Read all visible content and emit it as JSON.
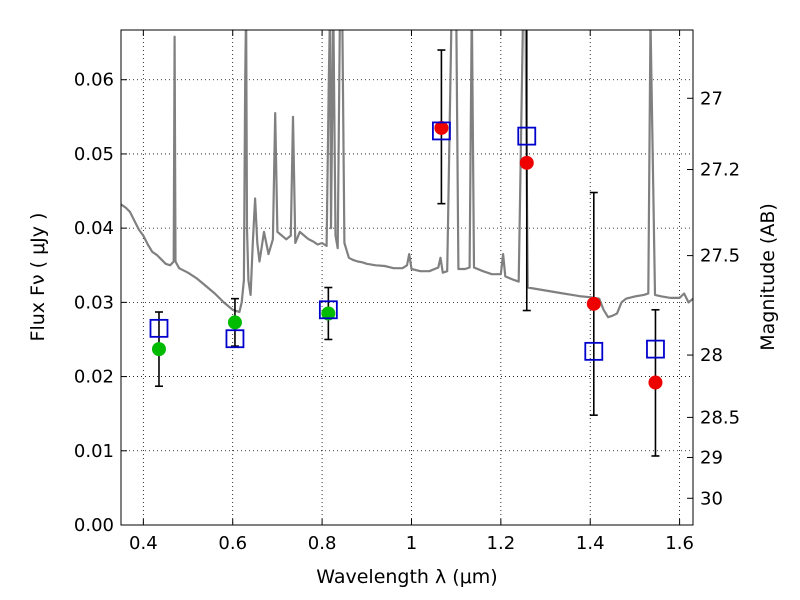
{
  "chart_data": {
    "type": "scatter",
    "xlabel": "Wavelength  λ (μm)",
    "ylabel_left": "Flux  Fν  ( μJy )",
    "ylabel_right": "Magnitude (AB)",
    "xlim": [
      0.35,
      1.63
    ],
    "ylim": [
      0.0,
      0.0667
    ],
    "grid": true,
    "x_ticks": [
      0.4,
      0.6,
      0.8,
      1.0,
      1.2,
      1.4,
      1.6
    ],
    "x_tick_labels": [
      "0.4",
      "0.6",
      "0.8",
      "1",
      "1.2",
      "1.4",
      "1.6"
    ],
    "y_ticks": [
      0.0,
      0.01,
      0.02,
      0.03,
      0.04,
      0.05,
      0.06
    ],
    "y_tick_labels": [
      "0.00",
      "0.01",
      "0.02",
      "0.03",
      "0.04",
      "0.05",
      "0.06"
    ],
    "right_ticks": [
      {
        "label": "27",
        "flux": 0.0575
      },
      {
        "label": "27.2",
        "flux": 0.0479
      },
      {
        "label": "27.5",
        "flux": 0.0363
      },
      {
        "label": "28",
        "flux": 0.0229
      },
      {
        "label": "28.5",
        "flux": 0.0145
      },
      {
        "label": "29",
        "flux": 0.0091
      },
      {
        "label": "30",
        "flux": 0.0036
      }
    ],
    "colors": {
      "model": "#808080",
      "model_points": "#0000cc",
      "green_points": "#00bb00",
      "red_points": "#ee0000",
      "errorbar": "#000000"
    },
    "series": [
      {
        "kind": "model_spectrum",
        "points": [
          [
            0.35,
            0.0432
          ],
          [
            0.36,
            0.0428
          ],
          [
            0.37,
            0.0422
          ],
          [
            0.38,
            0.041
          ],
          [
            0.39,
            0.0398
          ],
          [
            0.4,
            0.039
          ],
          [
            0.41,
            0.0378
          ],
          [
            0.42,
            0.0368
          ],
          [
            0.43,
            0.0364
          ],
          [
            0.44,
            0.0358
          ],
          [
            0.45,
            0.0352
          ],
          [
            0.46,
            0.035
          ],
          [
            0.468,
            0.0355
          ],
          [
            0.47,
            0.0658
          ],
          [
            0.472,
            0.0355
          ],
          [
            0.48,
            0.0346
          ],
          [
            0.5,
            0.034
          ],
          [
            0.52,
            0.0332
          ],
          [
            0.54,
            0.0322
          ],
          [
            0.56,
            0.0312
          ],
          [
            0.58,
            0.03
          ],
          [
            0.6,
            0.029
          ],
          [
            0.61,
            0.0288
          ],
          [
            0.615,
            0.0287
          ],
          [
            0.62,
            0.03
          ],
          [
            0.625,
            0.033
          ],
          [
            0.628,
            0.06
          ],
          [
            0.63,
            0.07
          ],
          [
            0.632,
            0.04
          ],
          [
            0.635,
            0.033
          ],
          [
            0.64,
            0.031
          ],
          [
            0.645,
            0.038
          ],
          [
            0.65,
            0.044
          ],
          [
            0.655,
            0.038
          ],
          [
            0.66,
            0.0355
          ],
          [
            0.67,
            0.0395
          ],
          [
            0.68,
            0.0365
          ],
          [
            0.69,
            0.0385
          ],
          [
            0.695,
            0.0555
          ],
          [
            0.7,
            0.0395
          ],
          [
            0.71,
            0.039
          ],
          [
            0.72,
            0.0385
          ],
          [
            0.73,
            0.039
          ],
          [
            0.735,
            0.055
          ],
          [
            0.74,
            0.038
          ],
          [
            0.75,
            0.0395
          ],
          [
            0.76,
            0.039
          ],
          [
            0.77,
            0.0385
          ],
          [
            0.78,
            0.0382
          ],
          [
            0.79,
            0.0378
          ],
          [
            0.8,
            0.038
          ],
          [
            0.81,
            0.0376
          ],
          [
            0.815,
            0.06
          ],
          [
            0.818,
            0.07
          ],
          [
            0.82,
            0.04
          ],
          [
            0.825,
            0.07
          ],
          [
            0.83,
            0.039
          ],
          [
            0.835,
            0.0373
          ],
          [
            0.84,
            0.07
          ],
          [
            0.845,
            0.07
          ],
          [
            0.85,
            0.038
          ],
          [
            0.86,
            0.036
          ],
          [
            0.87,
            0.0357
          ],
          [
            0.88,
            0.0355
          ],
          [
            0.89,
            0.0354
          ],
          [
            0.9,
            0.0352
          ],
          [
            0.92,
            0.035
          ],
          [
            0.94,
            0.0349
          ],
          [
            0.96,
            0.0346
          ],
          [
            0.98,
            0.0346
          ],
          [
            0.99,
            0.035
          ],
          [
            0.995,
            0.0365
          ],
          [
            1.0,
            0.0345
          ],
          [
            1.02,
            0.0342
          ],
          [
            1.04,
            0.0342
          ],
          [
            1.06,
            0.0347
          ],
          [
            1.065,
            0.036
          ],
          [
            1.07,
            0.034
          ],
          [
            1.08,
            0.0342
          ],
          [
            1.09,
            0.07
          ],
          [
            1.1,
            0.07
          ],
          [
            1.105,
            0.0345
          ],
          [
            1.12,
            0.0345
          ],
          [
            1.13,
            0.0347
          ],
          [
            1.135,
            0.07
          ],
          [
            1.14,
            0.0347
          ],
          [
            1.16,
            0.0342
          ],
          [
            1.18,
            0.0338
          ],
          [
            1.2,
            0.0338
          ],
          [
            1.205,
            0.0365
          ],
          [
            1.21,
            0.0335
          ],
          [
            1.23,
            0.033
          ],
          [
            1.24,
            0.0328
          ],
          [
            1.25,
            0.07
          ],
          [
            1.255,
            0.07
          ],
          [
            1.26,
            0.032
          ],
          [
            1.28,
            0.0318
          ],
          [
            1.3,
            0.0316
          ],
          [
            1.32,
            0.0314
          ],
          [
            1.34,
            0.0312
          ],
          [
            1.36,
            0.031
          ],
          [
            1.38,
            0.0308
          ],
          [
            1.4,
            0.0307
          ],
          [
            1.42,
            0.0305
          ],
          [
            1.43,
            0.029
          ],
          [
            1.44,
            0.028
          ],
          [
            1.45,
            0.0282
          ],
          [
            1.46,
            0.0285
          ],
          [
            1.47,
            0.03
          ],
          [
            1.48,
            0.0305
          ],
          [
            1.5,
            0.0308
          ],
          [
            1.52,
            0.031
          ],
          [
            1.53,
            0.0312
          ],
          [
            1.535,
            0.068
          ],
          [
            1.545,
            0.031
          ],
          [
            1.56,
            0.0308
          ],
          [
            1.58,
            0.0306
          ],
          [
            1.6,
            0.0306
          ],
          [
            1.61,
            0.0312
          ],
          [
            1.62,
            0.03
          ],
          [
            1.63,
            0.0305
          ]
        ]
      },
      {
        "kind": "model_photometry",
        "points": [
          {
            "x": 0.435,
            "y": 0.0265
          },
          {
            "x": 0.605,
            "y": 0.0251
          },
          {
            "x": 0.814,
            "y": 0.029
          },
          {
            "x": 1.067,
            "y": 0.0531
          },
          {
            "x": 1.258,
            "y": 0.0524
          },
          {
            "x": 1.408,
            "y": 0.0234
          },
          {
            "x": 1.546,
            "y": 0.0237
          }
        ]
      },
      {
        "kind": "observed",
        "points": [
          {
            "x": 0.435,
            "y": 0.0237,
            "lo": 0.0187,
            "hi": 0.0287,
            "color": "green"
          },
          {
            "x": 0.605,
            "y": 0.0273,
            "lo": 0.0241,
            "hi": 0.0305,
            "color": "green"
          },
          {
            "x": 0.814,
            "y": 0.0285,
            "lo": 0.025,
            "hi": 0.032,
            "color": "green"
          },
          {
            "x": 1.067,
            "y": 0.0535,
            "lo": 0.0433,
            "hi": 0.064,
            "color": "red"
          },
          {
            "x": 1.258,
            "y": 0.0488,
            "lo": 0.0289,
            "hi": 0.0667,
            "color": "red"
          },
          {
            "x": 1.408,
            "y": 0.0298,
            "lo": 0.0148,
            "hi": 0.0448,
            "color": "red"
          },
          {
            "x": 1.546,
            "y": 0.0192,
            "lo": 0.0093,
            "hi": 0.029,
            "color": "red"
          }
        ]
      }
    ]
  }
}
